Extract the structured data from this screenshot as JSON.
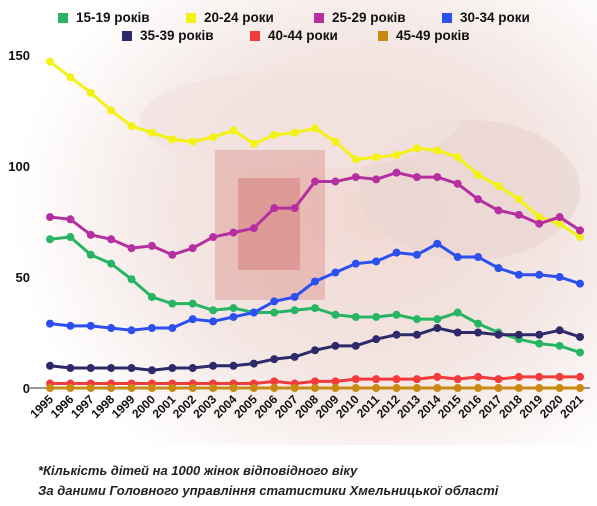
{
  "chart_data": {
    "type": "line",
    "title": "",
    "xlabel": "",
    "ylabel": "",
    "ylim": [
      0,
      150
    ],
    "yticks": [
      "0",
      "50",
      "100",
      "150"
    ],
    "grid": false,
    "legend": "top",
    "x": [
      "1995",
      "1996",
      "1997",
      "1998",
      "1999",
      "2000",
      "2001",
      "2002",
      "2003",
      "2004",
      "2005",
      "2006",
      "2007",
      "2008",
      "2009",
      "2010",
      "2011",
      "2012",
      "2013",
      "2014",
      "2015",
      "2016",
      "2017",
      "2018",
      "2019",
      "2020",
      "2021"
    ],
    "series": [
      {
        "name": "15-19 років",
        "color": "#27b463",
        "values": [
          67,
          68,
          60,
          56,
          49,
          41,
          38,
          38,
          35,
          36,
          34,
          34,
          35,
          36,
          33,
          32,
          32,
          33,
          31,
          31,
          34,
          29,
          25,
          22,
          20,
          19,
          16
        ]
      },
      {
        "name": "20-24 роки",
        "color": "#f4f213",
        "values": [
          147,
          140,
          133,
          125,
          118,
          115,
          112,
          111,
          113,
          116,
          110,
          114,
          115,
          117,
          111,
          103,
          104,
          105,
          108,
          107,
          104,
          96,
          91,
          85,
          77,
          74,
          68
        ]
      },
      {
        "name": "25-29 років",
        "color": "#b62fa0",
        "values": [
          77,
          76,
          69,
          67,
          63,
          64,
          60,
          63,
          68,
          70,
          72,
          81,
          81,
          93,
          93,
          95,
          94,
          97,
          95,
          95,
          92,
          85,
          80,
          78,
          74,
          77,
          71
        ]
      },
      {
        "name": "30-34 роки",
        "color": "#2c4ff0",
        "values": [
          29,
          28,
          28,
          27,
          26,
          27,
          27,
          31,
          30,
          32,
          34,
          39,
          41,
          48,
          52,
          56,
          57,
          61,
          60,
          65,
          59,
          59,
          54,
          51,
          51,
          50,
          47
        ]
      },
      {
        "name": "35-39 років",
        "color": "#2e2a6a",
        "values": [
          10,
          9,
          9,
          9,
          9,
          8,
          9,
          9,
          10,
          10,
          11,
          13,
          14,
          17,
          19,
          19,
          22,
          24,
          24,
          27,
          25,
          25,
          24,
          24,
          24,
          26,
          23
        ]
      },
      {
        "name": "40-44 роки",
        "color": "#f23b3b",
        "values": [
          2,
          2,
          2,
          2,
          2,
          2,
          2,
          2,
          2,
          2,
          2,
          3,
          2,
          3,
          3,
          4,
          4,
          4,
          4,
          5,
          4,
          5,
          4,
          5,
          5,
          5,
          5
        ]
      },
      {
        "name": "45-49 років",
        "color": "#c98a14",
        "values": [
          0,
          0,
          0,
          0,
          0,
          0,
          0,
          0,
          0,
          0,
          0,
          0,
          0,
          0,
          0,
          0,
          0,
          0,
          0,
          0,
          0,
          0,
          0,
          0,
          0,
          0,
          0
        ]
      }
    ]
  },
  "footnote": "*Кількість дітей на 1000 жінок відповідного віку",
  "source": "За даними Головного управління статистики Хмельницької області"
}
